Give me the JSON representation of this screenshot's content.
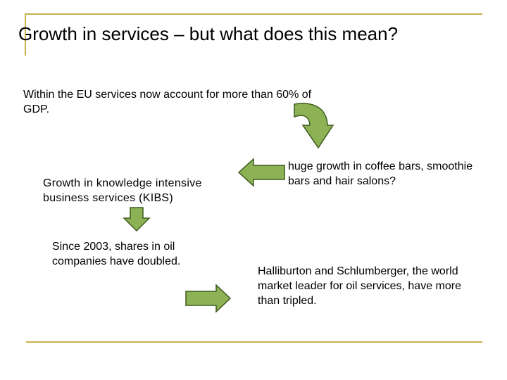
{
  "slide": {
    "title": "Growth in services – but what does this mean?",
    "text_eu": "Within the EU services now account for more than 60% of GDP.",
    "text_coffee": "huge growth in coffee bars, smoothie bars and hair salons?",
    "text_kibs": "Growth in knowledge intensive business services (KIBS)",
    "text_oil_shares": "Since 2003, shares in oil companies have doubled.",
    "text_halliburton": "Halliburton and Schlumberger, the world market leader for oil services, have more than tripled."
  },
  "colors": {
    "arrow_fill": "#8DB255",
    "arrow_stroke": "#3E5A1E",
    "rule": "#C8B24A"
  }
}
